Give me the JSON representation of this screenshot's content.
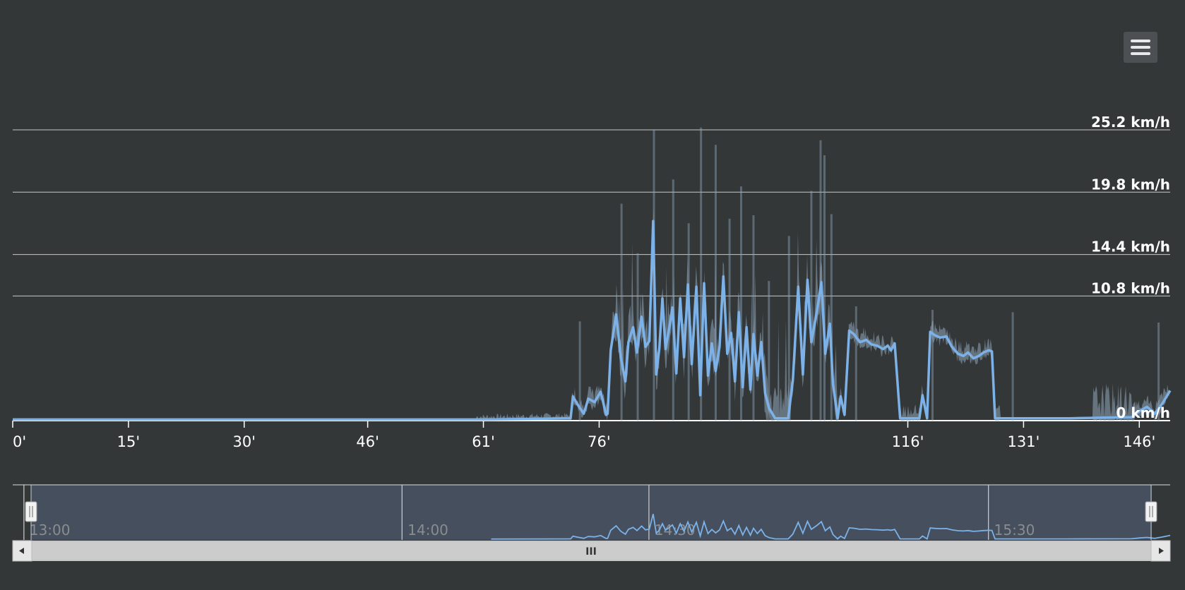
{
  "menu": {
    "icon": "hamburger-menu-icon"
  },
  "colors": {
    "background": "#343738",
    "line": "#7cb2e8",
    "raw": "#8fa7bc",
    "grid": "#c8c8c8",
    "navigator_fill": "#454f5e",
    "scrollbar": "#cccccc"
  },
  "chart_data": {
    "type": "line",
    "xlabel": "",
    "ylabel": "",
    "x_unit": "minutes",
    "xlim": [
      0,
      150
    ],
    "ylim": [
      0,
      25.2
    ],
    "y_ticks": [
      {
        "value": 0,
        "label": "0 km/h"
      },
      {
        "value": 10.8,
        "label": "10.8 km/h"
      },
      {
        "value": 14.4,
        "label": "14.4 km/h"
      },
      {
        "value": 19.8,
        "label": "19.8 km/h"
      },
      {
        "value": 25.2,
        "label": "25.2 km/h"
      }
    ],
    "x_ticks": [
      {
        "value": 0,
        "label": "0'"
      },
      {
        "value": 15,
        "label": "15'"
      },
      {
        "value": 30,
        "label": "30'"
      },
      {
        "value": 46,
        "label": "46'"
      },
      {
        "value": 61,
        "label": "61'"
      },
      {
        "value": 76,
        "label": "76'"
      },
      {
        "value": 116,
        "label": "116'"
      },
      {
        "value": 131,
        "label": "131'"
      },
      {
        "value": 146,
        "label": "146'"
      }
    ],
    "grid": true,
    "legend": "none",
    "series": [
      {
        "values": [
          [
            0,
            0.1
          ],
          [
            62,
            0.1
          ],
          [
            72.3,
            0.2
          ],
          [
            72.6,
            2.1
          ],
          [
            73.2,
            1.4
          ],
          [
            74,
            0.6
          ],
          [
            74.6,
            1.9
          ],
          [
            75.4,
            1.6
          ],
          [
            76.2,
            2.5
          ],
          [
            76.9,
            0.5
          ],
          [
            77.1,
            0.6
          ],
          [
            77.5,
            6.1
          ],
          [
            78.2,
            9.2
          ],
          [
            78.8,
            5.5
          ],
          [
            79.4,
            3.4
          ],
          [
            79.8,
            6.8
          ],
          [
            80.4,
            8.1
          ],
          [
            80.9,
            5.9
          ],
          [
            81.5,
            9.0
          ],
          [
            82,
            6.4
          ],
          [
            82.5,
            6.9
          ],
          [
            83,
            17.3
          ],
          [
            83.4,
            4.0
          ],
          [
            83.8,
            6.3
          ],
          [
            84.2,
            10.6
          ],
          [
            84.6,
            6.2
          ],
          [
            85,
            7.7
          ],
          [
            85.5,
            9.8
          ],
          [
            86,
            4.1
          ],
          [
            86.5,
            10.6
          ],
          [
            87,
            5.5
          ],
          [
            87.5,
            11.8
          ],
          [
            88,
            4.9
          ],
          [
            88.6,
            11.6
          ],
          [
            89.1,
            2.2
          ],
          [
            89.6,
            11.9
          ],
          [
            90.1,
            3.9
          ],
          [
            90.6,
            6.7
          ],
          [
            91.1,
            4.3
          ],
          [
            91.6,
            6.4
          ],
          [
            92.1,
            12.5
          ],
          [
            92.6,
            5.8
          ],
          [
            93.1,
            7.6
          ],
          [
            93.6,
            3.4
          ],
          [
            94.1,
            9.4
          ],
          [
            94.6,
            2.9
          ],
          [
            95.1,
            8.1
          ],
          [
            95.6,
            2.7
          ],
          [
            96,
            7.5
          ],
          [
            96.5,
            3.9
          ],
          [
            97,
            6.8
          ],
          [
            97.5,
            2.4
          ],
          [
            98,
            1.1
          ],
          [
            98.8,
            0.2
          ],
          [
            100.5,
            0.2
          ],
          [
            101.1,
            3.5
          ],
          [
            101.8,
            11.6
          ],
          [
            102.4,
            4.0
          ],
          [
            103,
            12.2
          ],
          [
            103.5,
            6.8
          ],
          [
            104.2,
            9.4
          ],
          [
            104.8,
            12.0
          ],
          [
            105.3,
            5.8
          ],
          [
            105.9,
            8.4
          ],
          [
            106.3,
            3.2
          ],
          [
            106.9,
            0.2
          ],
          [
            107.3,
            2.1
          ],
          [
            107.8,
            0.5
          ],
          [
            108.4,
            7.8
          ],
          [
            109,
            7.5
          ],
          [
            109.8,
            6.8
          ],
          [
            110.6,
            7.0
          ],
          [
            111.3,
            6.6
          ],
          [
            112,
            6.5
          ],
          [
            112.8,
            6.2
          ],
          [
            113.4,
            6.5
          ],
          [
            113.8,
            6.1
          ],
          [
            114.3,
            6.7
          ],
          [
            115,
            0.2
          ],
          [
            117.5,
            0.2
          ],
          [
            117.9,
            2.2
          ],
          [
            118.5,
            0.2
          ],
          [
            118.9,
            7.7
          ],
          [
            119.5,
            7.4
          ],
          [
            120.2,
            7.2
          ],
          [
            121,
            7.3
          ],
          [
            121.7,
            6.4
          ],
          [
            122.5,
            5.8
          ],
          [
            123.2,
            5.6
          ],
          [
            123.8,
            5.9
          ],
          [
            124.5,
            5.4
          ],
          [
            125.2,
            5.6
          ],
          [
            125.8,
            5.9
          ],
          [
            126.5,
            6.1
          ],
          [
            126.9,
            6.0
          ],
          [
            127.3,
            0.2
          ],
          [
            137,
            0.2
          ],
          [
            145,
            0.3
          ],
          [
            146,
            0.8
          ],
          [
            147,
            1.2
          ],
          [
            148,
            0.6
          ],
          [
            149,
            1.5
          ],
          [
            150,
            2.6
          ]
        ]
      }
    ]
  },
  "navigator": {
    "time_labels": [
      {
        "minute": 2,
        "label": "13:00"
      },
      {
        "minute": 51,
        "label": "14:00"
      },
      {
        "minute": 83,
        "label": "14:30"
      },
      {
        "minute": 127,
        "label": "15:30"
      }
    ],
    "range": [
      0,
      150
    ],
    "scrollbar_grip": "III"
  }
}
